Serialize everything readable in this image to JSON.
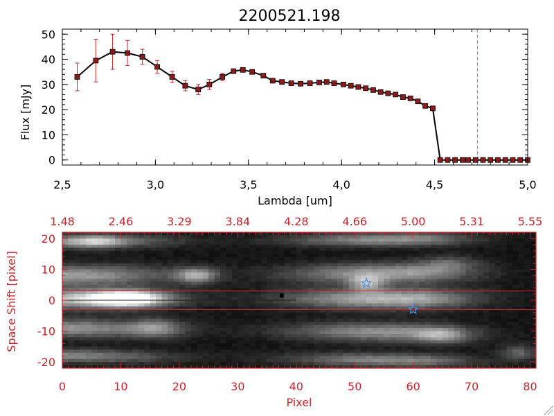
{
  "colors": {
    "axis_top": "#000000",
    "axis_bottom": "#c8232b",
    "error_bar": "#c8232b",
    "marker": "#8b1a1a",
    "line": "#000000",
    "cutoff_line": "#4a90e2",
    "star": "#4a90e2",
    "band_line": "#d6242b",
    "dot": "#000000"
  },
  "chart_data": [
    {
      "type": "line",
      "title": "2200521.198",
      "xlabel": "Lambda [um]",
      "ylabel": "Flux [mJy]",
      "xlim": [
        2.5,
        5.0
      ],
      "ylim": [
        -2,
        52
      ],
      "x_ticks": [
        2.5,
        3.0,
        3.5,
        4.0,
        4.5,
        5.0
      ],
      "x_tick_labels": [
        "2,5",
        "3,0",
        "3,5",
        "4,0",
        "4,5",
        "5,0"
      ],
      "y_ticks": [
        0,
        10,
        20,
        30,
        40,
        50
      ],
      "y_tick_labels": [
        "0",
        "10",
        "20",
        "30",
        "40",
        "50"
      ],
      "cutoff_x": 4.73,
      "series": [
        {
          "name": "Flux",
          "x": [
            2.58,
            2.68,
            2.77,
            2.85,
            2.93,
            3.01,
            3.09,
            3.16,
            3.23,
            3.29,
            3.36,
            3.42,
            3.47,
            3.52,
            3.58,
            3.63,
            3.68,
            3.73,
            3.78,
            3.83,
            3.88,
            3.92,
            3.96,
            4.01,
            4.05,
            4.09,
            4.13,
            4.17,
            4.21,
            4.25,
            4.29,
            4.33,
            4.37,
            4.41,
            4.45,
            4.49,
            4.53,
            4.57,
            4.61,
            4.65,
            4.68,
            4.72,
            4.76,
            4.8,
            4.84,
            4.88,
            4.92,
            4.96,
            5.0
          ],
          "y": [
            33,
            39.5,
            43,
            42.5,
            41,
            37,
            33,
            29.5,
            28,
            30,
            33,
            35.3,
            35.8,
            35,
            33.5,
            31.5,
            31,
            30.5,
            30.3,
            30.5,
            30.8,
            31,
            30.5,
            30,
            29.5,
            29,
            28.5,
            27.8,
            27,
            26.5,
            26,
            25,
            24.5,
            23.3,
            21.5,
            20.5,
            0,
            0,
            0,
            0,
            0,
            0,
            0,
            0,
            0,
            0,
            0,
            0,
            0
          ],
          "err": [
            5.5,
            8.5,
            7,
            5,
            3,
            2.5,
            2.2,
            2,
            2,
            2,
            1.5,
            0.7,
            0.6,
            0.6,
            0.5,
            0.5,
            0.5,
            0.5,
            0.5,
            0.5,
            0.5,
            0.5,
            0.5,
            0.5,
            0.5,
            0.5,
            0.5,
            0.5,
            0.5,
            0.5,
            0.5,
            0.5,
            0.5,
            0.5,
            0.5,
            0.5,
            0,
            0,
            0,
            0,
            0,
            0,
            0,
            0,
            0,
            0,
            0,
            0,
            0
          ]
        }
      ]
    },
    {
      "type": "heatmap",
      "xlabel": "Pixel",
      "ylabel": "Space Shift [pixel]",
      "xlim": [
        0,
        81
      ],
      "ylim": [
        -22,
        22
      ],
      "x_ticks": [
        0,
        10,
        20,
        30,
        40,
        50,
        60,
        70,
        80
      ],
      "x_tick_labels": [
        "0",
        "10",
        "20",
        "30",
        "40",
        "50",
        "60",
        "70",
        "80"
      ],
      "y_ticks": [
        -20,
        -10,
        0,
        10,
        20
      ],
      "y_tick_labels": [
        "-20",
        "-10",
        "0",
        "10",
        "20"
      ],
      "top_axis_labels": [
        "1.48",
        "2.46",
        "3.29",
        "3.84",
        "4.28",
        "4.66",
        "5.00",
        "5.31",
        "5.55"
      ],
      "band_y": [
        3,
        -3
      ],
      "markers": [
        {
          "kind": "star",
          "x": 52,
          "y": 5.5
        },
        {
          "kind": "star",
          "x": 60,
          "y": -3
        },
        {
          "kind": "square",
          "x": 37.5,
          "y": 1.5
        }
      ],
      "traces": [
        {
          "y0": 0.5,
          "y1": 0.5,
          "width": 3.2,
          "brightness": 0.65
        },
        {
          "y0": 8,
          "y1": 9,
          "width": 3.2,
          "brightness": 0.55
        },
        {
          "y0": -9,
          "y1": -11,
          "width": 3.0,
          "brightness": 0.5
        },
        {
          "y0": 19,
          "y1": 20,
          "width": 2.2,
          "brightness": 0.5
        },
        {
          "y0": -18,
          "y1": -20,
          "width": 2.2,
          "brightness": 0.45
        }
      ],
      "blobs": [
        {
          "x": 11,
          "y": 0.5,
          "w": 6,
          "h": 2.4,
          "b": 1.0
        },
        {
          "x": 23,
          "y": 8,
          "w": 3.5,
          "h": 2.5,
          "b": 0.55
        },
        {
          "x": 16,
          "y": -9,
          "w": 4,
          "h": 3,
          "b": 0.35
        },
        {
          "x": 52,
          "y": 5.5,
          "w": 3,
          "h": 2.5,
          "b": 0.45
        },
        {
          "x": 65,
          "y": -11.5,
          "w": 4,
          "h": 2.5,
          "b": 0.35
        },
        {
          "x": 66,
          "y": 12,
          "w": 5,
          "h": 2.5,
          "b": 0.25
        },
        {
          "x": 78,
          "y": -17,
          "w": 3,
          "h": 2.5,
          "b": 0.3
        },
        {
          "x": 6,
          "y": 19,
          "w": 4,
          "h": 2,
          "b": 0.35
        }
      ]
    }
  ]
}
